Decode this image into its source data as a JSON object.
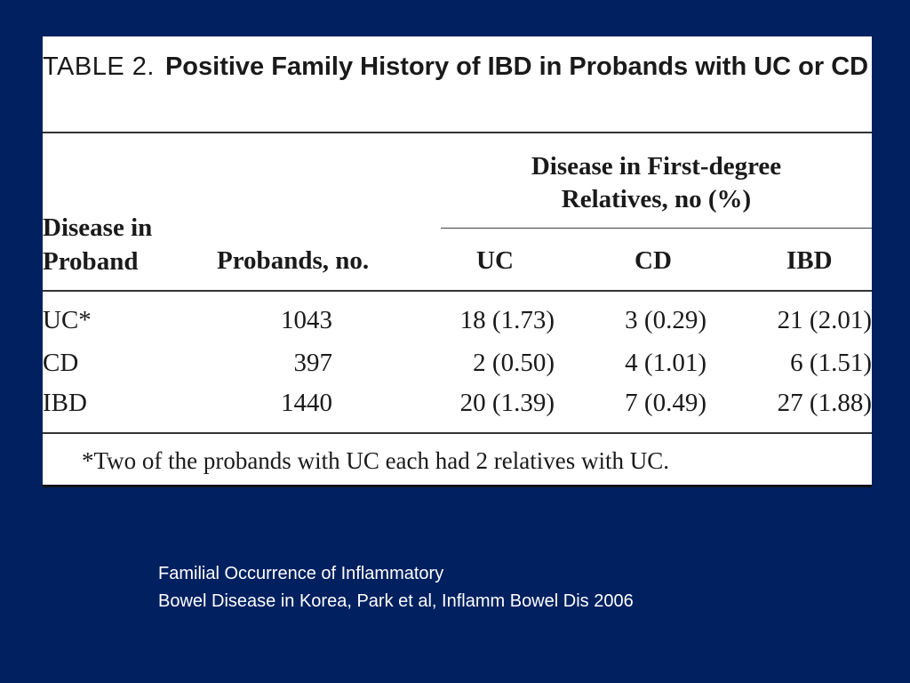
{
  "table": {
    "label": "TABLE 2.",
    "title": "Positive Family History of IBD in Probands with UC or CD",
    "headers": {
      "disease_line1": "Disease in",
      "disease_line2": "Proband",
      "probands": "Probands, no.",
      "group_line1": "Disease in First-degree",
      "group_line2": "Relatives, no (%)",
      "uc": "UC",
      "cd": "CD",
      "ibd": "IBD"
    },
    "rows": [
      {
        "disease": "UC*",
        "probands": "1043",
        "uc": "18 (1.73)",
        "cd": "3 (0.29)",
        "ibd": "21 (2.01)"
      },
      {
        "disease": "CD",
        "probands": "397",
        "uc": "2 (0.50)",
        "cd": "4 (1.01)",
        "ibd": "6 (1.51)"
      },
      {
        "disease": "IBD",
        "probands": "1440",
        "uc": "20 (1.39)",
        "cd": "7 (0.49)",
        "ibd": "27 (1.88)"
      }
    ],
    "footnote": "*Two of the probands with UC each had 2 relatives with UC."
  },
  "citation": {
    "line1": "Familial Occurrence of Inflammatory",
    "line2": "Bowel Disease in Korea, Park et al, Inflamm Bowel Dis 2006"
  },
  "colors": {
    "slide_background": "#002060",
    "table_background": "#ffffff",
    "citation_text": "#ffffff"
  }
}
